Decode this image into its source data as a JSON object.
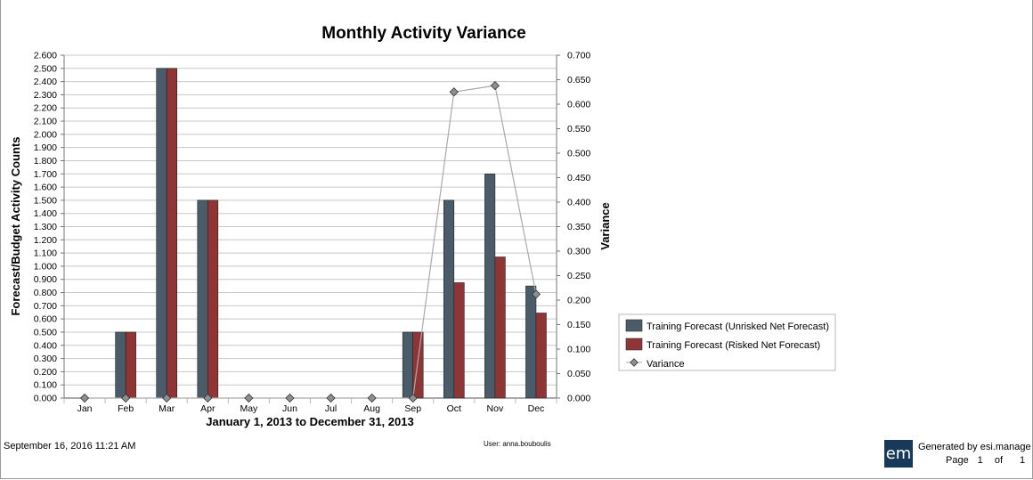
{
  "chart_data": {
    "type": "bar",
    "title": "Monthly Activity Variance",
    "xlabel": "January 1, 2013 to December 31, 2013",
    "ylabel": "Forecast/Budget Activity Counts",
    "y2label": "Variance",
    "categories": [
      "Jan",
      "Feb",
      "Mar",
      "Apr",
      "May",
      "Jun",
      "Jul",
      "Aug",
      "Sep",
      "Oct",
      "Nov",
      "Dec"
    ],
    "ylim": [
      0,
      2.6
    ],
    "y2lim": [
      0,
      0.7
    ],
    "yticks": [
      "0.000",
      "0.100",
      "0.200",
      "0.300",
      "0.400",
      "0.500",
      "0.600",
      "0.700",
      "0.800",
      "0.900",
      "1.000",
      "1.100",
      "1.200",
      "1.300",
      "1.400",
      "1.500",
      "1.600",
      "1.700",
      "1.800",
      "1.900",
      "2.000",
      "2.100",
      "2.200",
      "2.300",
      "2.400",
      "2.500",
      "2.600"
    ],
    "y2ticks": [
      "0.000",
      "0.050",
      "0.100",
      "0.150",
      "0.200",
      "0.250",
      "0.300",
      "0.350",
      "0.400",
      "0.450",
      "0.500",
      "0.550",
      "0.600",
      "0.650",
      "0.700"
    ],
    "grid": true,
    "legend_position": "right",
    "series": [
      {
        "name": "Training Forecast (Unrisked Net Forecast)",
        "type": "bar",
        "color": "#4a5b69",
        "values": [
          0,
          0.5,
          2.5,
          1.5,
          0,
          0,
          0,
          0,
          0.5,
          1.5,
          1.7,
          0.85
        ]
      },
      {
        "name": "Training Forecast (Risked Net Forecast)",
        "type": "bar",
        "color": "#8f3535",
        "values": [
          0,
          0.5,
          2.5,
          1.5,
          0,
          0,
          0,
          0,
          0.5,
          0.875,
          1.07,
          0.645
        ]
      },
      {
        "name": "Variance",
        "type": "line",
        "axis": "right",
        "color": "#aaaaaa",
        "marker_color": "#8a9196",
        "values": [
          0,
          0,
          0,
          0,
          0,
          0,
          0,
          0,
          0,
          0.625,
          0.638,
          0.212
        ]
      }
    ]
  },
  "footer": {
    "date": "September 16, 2016 11:21 AM",
    "user": "User: anna.bouboulis",
    "logo": "em",
    "generated": "Generated by esi.manage",
    "page_label": "Page",
    "page_num": "1",
    "of_label": "of",
    "page_total": "1"
  }
}
